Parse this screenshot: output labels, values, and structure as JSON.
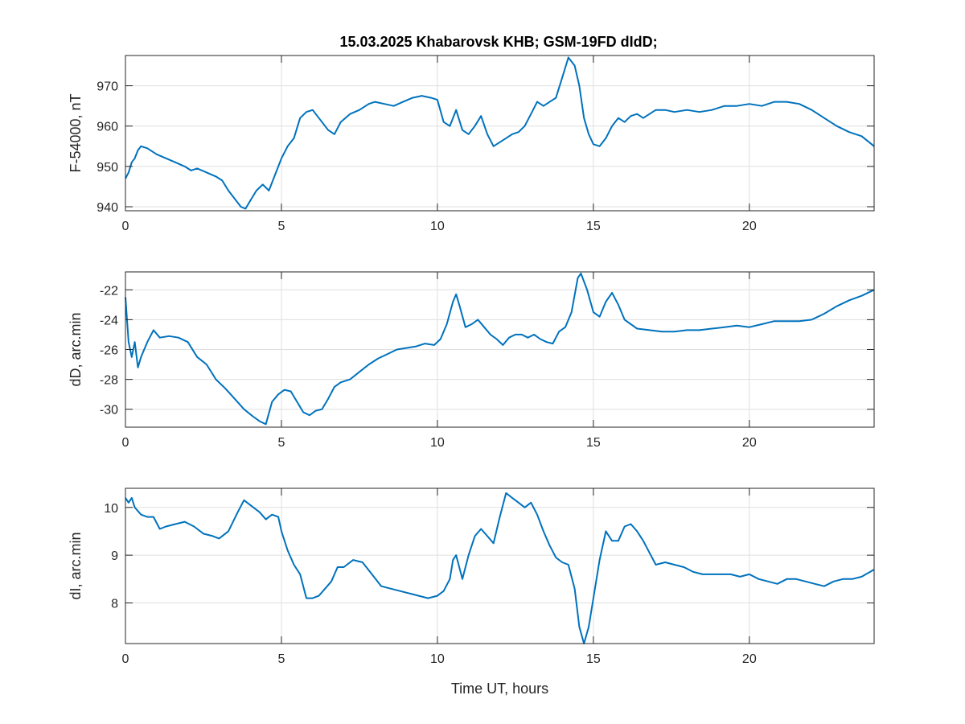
{
  "figure": {
    "title": "15.03.2025  Khabarovsk KHB; GSM-19FD dIdD;"
  },
  "chart_data": [
    {
      "type": "line",
      "xlabel": "",
      "ylabel": "F-54000, nT",
      "xlim": [
        0,
        24
      ],
      "ylim": [
        939,
        977.5
      ],
      "xticks": [
        0,
        5,
        10,
        15,
        20
      ],
      "yticks": [
        940,
        950,
        960,
        970
      ],
      "ytick_labels": [
        "940",
        "950",
        "960",
        "970"
      ],
      "grid": true,
      "color": "#0072bd",
      "series": [
        {
          "x": [
            0,
            0.1,
            0.2,
            0.3,
            0.4,
            0.5,
            0.7,
            1.0,
            1.3,
            1.6,
            1.9,
            2.1,
            2.3,
            2.6,
            2.9,
            3.1,
            3.3,
            3.5,
            3.7,
            3.85,
            4.0,
            4.2,
            4.4,
            4.6,
            4.8,
            5.0,
            5.2,
            5.4,
            5.6,
            5.8,
            6.0,
            6.2,
            6.5,
            6.7,
            6.9,
            7.2,
            7.5,
            7.8,
            8.0,
            8.3,
            8.6,
            8.9,
            9.2,
            9.5,
            9.8,
            10.0,
            10.2,
            10.4,
            10.6,
            10.8,
            11.0,
            11.2,
            11.4,
            11.6,
            11.8,
            12.0,
            12.2,
            12.4,
            12.6,
            12.8,
            13.0,
            13.2,
            13.4,
            13.6,
            13.8,
            14.0,
            14.2,
            14.4,
            14.55,
            14.7,
            14.85,
            15.0,
            15.2,
            15.4,
            15.6,
            15.8,
            16.0,
            16.2,
            16.4,
            16.6,
            16.8,
            17.0,
            17.3,
            17.6,
            18.0,
            18.4,
            18.8,
            19.2,
            19.6,
            20.0,
            20.4,
            20.8,
            21.2,
            21.6,
            22.0,
            22.4,
            22.8,
            23.2,
            23.6,
            24.0
          ],
          "y": [
            947,
            948.5,
            951,
            952,
            954,
            955,
            954.5,
            953,
            952,
            951,
            950,
            949,
            949.5,
            948.5,
            947.5,
            946.5,
            944,
            942,
            940,
            939.5,
            941.5,
            944,
            945.5,
            944,
            948,
            952,
            955,
            957,
            962,
            963.5,
            964,
            962,
            959,
            958,
            961,
            963,
            964,
            965.5,
            966,
            965.5,
            965,
            966,
            967,
            967.5,
            967,
            966.5,
            961,
            960,
            964,
            959,
            958,
            960,
            962.5,
            958,
            955,
            956,
            957,
            958,
            958.5,
            960,
            963,
            966,
            965,
            966,
            967,
            972,
            977,
            975,
            970,
            962,
            958,
            955.5,
            955,
            957,
            960,
            962,
            961,
            962.5,
            963,
            962,
            963,
            964,
            964,
            963.5,
            964,
            963.5,
            964,
            965,
            965,
            965.5,
            965,
            966,
            966,
            965.5,
            964,
            962,
            960,
            958.5,
            957.5,
            955
          ]
        }
      ]
    },
    {
      "type": "line",
      "xlabel": "",
      "ylabel": "dD, arc.min",
      "xlim": [
        0,
        24
      ],
      "ylim": [
        -31.2,
        -20.8
      ],
      "xticks": [
        0,
        5,
        10,
        15,
        20
      ],
      "yticks": [
        -30,
        -28,
        -26,
        -24,
        -22
      ],
      "ytick_labels": [
        "-30",
        "-28",
        "-26",
        "-24",
        "-22"
      ],
      "grid": true,
      "color": "#0072bd",
      "series": [
        {
          "x": [
            0,
            0.1,
            0.2,
            0.3,
            0.4,
            0.5,
            0.7,
            0.9,
            1.1,
            1.4,
            1.7,
            2.0,
            2.3,
            2.6,
            2.9,
            3.2,
            3.5,
            3.8,
            4.1,
            4.3,
            4.5,
            4.7,
            4.9,
            5.1,
            5.3,
            5.5,
            5.7,
            5.9,
            6.1,
            6.3,
            6.5,
            6.7,
            6.9,
            7.2,
            7.5,
            7.8,
            8.1,
            8.4,
            8.7,
            9.0,
            9.3,
            9.6,
            9.9,
            10.1,
            10.3,
            10.5,
            10.6,
            10.7,
            10.9,
            11.1,
            11.3,
            11.5,
            11.7,
            11.9,
            12.1,
            12.3,
            12.5,
            12.7,
            12.9,
            13.1,
            13.3,
            13.5,
            13.7,
            13.9,
            14.1,
            14.3,
            14.5,
            14.6,
            14.8,
            15.0,
            15.2,
            15.4,
            15.6,
            15.8,
            16.0,
            16.4,
            16.8,
            17.2,
            17.6,
            18.0,
            18.4,
            18.8,
            19.2,
            19.6,
            20.0,
            20.4,
            20.8,
            21.2,
            21.6,
            22.0,
            22.4,
            22.8,
            23.2,
            23.6,
            24.0
          ],
          "y": [
            -22.5,
            -25.5,
            -26.5,
            -25.5,
            -27.2,
            -26.5,
            -25.5,
            -24.7,
            -25.2,
            -25.1,
            -25.2,
            -25.5,
            -26.5,
            -27,
            -28,
            -28.6,
            -29.3,
            -30,
            -30.5,
            -30.8,
            -31,
            -29.5,
            -29,
            -28.7,
            -28.8,
            -29.5,
            -30.2,
            -30.4,
            -30.1,
            -30,
            -29.3,
            -28.5,
            -28.2,
            -28,
            -27.5,
            -27,
            -26.6,
            -26.3,
            -26,
            -25.9,
            -25.8,
            -25.6,
            -25.7,
            -25.3,
            -24.3,
            -22.8,
            -22.3,
            -23,
            -24.5,
            -24.3,
            -24,
            -24.5,
            -25,
            -25.3,
            -25.7,
            -25.2,
            -25,
            -25,
            -25.2,
            -25,
            -25.3,
            -25.5,
            -25.6,
            -24.8,
            -24.5,
            -23.5,
            -21.2,
            -20.9,
            -22,
            -23.5,
            -23.8,
            -22.8,
            -22.2,
            -23,
            -24,
            -24.6,
            -24.7,
            -24.8,
            -24.8,
            -24.7,
            -24.7,
            -24.6,
            -24.5,
            -24.4,
            -24.5,
            -24.3,
            -24.1,
            -24.1,
            -24.1,
            -24,
            -23.6,
            -23.1,
            -22.7,
            -22.4,
            -22
          ]
        }
      ]
    },
    {
      "type": "line",
      "xlabel": "Time UT, hours",
      "ylabel": "dI, arc.min",
      "xlim": [
        0,
        24
      ],
      "ylim": [
        7.15,
        10.4
      ],
      "xticks": [
        0,
        5,
        10,
        15,
        20
      ],
      "yticks": [
        8,
        9,
        10
      ],
      "ytick_labels": [
        "8",
        "9",
        "10"
      ],
      "grid": true,
      "color": "#0072bd",
      "series": [
        {
          "x": [
            0,
            0.1,
            0.2,
            0.3,
            0.5,
            0.7,
            0.9,
            1.1,
            1.3,
            1.6,
            1.9,
            2.2,
            2.5,
            2.8,
            3.0,
            3.3,
            3.6,
            3.8,
            4.0,
            4.3,
            4.5,
            4.7,
            4.9,
            5.0,
            5.2,
            5.4,
            5.6,
            5.8,
            6.0,
            6.2,
            6.4,
            6.6,
            6.8,
            7.0,
            7.3,
            7.6,
            7.9,
            8.2,
            8.5,
            8.8,
            9.1,
            9.4,
            9.7,
            10.0,
            10.2,
            10.4,
            10.5,
            10.6,
            10.8,
            11.0,
            11.2,
            11.4,
            11.6,
            11.8,
            12.0,
            12.2,
            12.4,
            12.6,
            12.8,
            13.0,
            13.2,
            13.4,
            13.6,
            13.8,
            14.0,
            14.2,
            14.4,
            14.55,
            14.7,
            14.85,
            15.0,
            15.2,
            15.4,
            15.6,
            15.8,
            16.0,
            16.2,
            16.4,
            16.6,
            16.8,
            17.0,
            17.3,
            17.6,
            17.9,
            18.2,
            18.5,
            18.8,
            19.1,
            19.4,
            19.7,
            20.0,
            20.3,
            20.6,
            20.9,
            21.2,
            21.5,
            21.8,
            22.1,
            22.4,
            22.7,
            23.0,
            23.3,
            23.6,
            24.0
          ],
          "y": [
            10.2,
            10.1,
            10.2,
            10,
            9.85,
            9.8,
            9.8,
            9.55,
            9.6,
            9.65,
            9.7,
            9.6,
            9.45,
            9.4,
            9.35,
            9.5,
            9.9,
            10.15,
            10.05,
            9.9,
            9.75,
            9.85,
            9.8,
            9.5,
            9.1,
            8.8,
            8.6,
            8.1,
            8.1,
            8.15,
            8.3,
            8.45,
            8.75,
            8.75,
            8.9,
            8.85,
            8.6,
            8.35,
            8.3,
            8.25,
            8.2,
            8.15,
            8.1,
            8.15,
            8.25,
            8.5,
            8.9,
            9,
            8.5,
            9,
            9.4,
            9.55,
            9.4,
            9.25,
            9.8,
            10.3,
            10.2,
            10.1,
            10,
            10.1,
            9.85,
            9.5,
            9.2,
            8.95,
            8.85,
            8.8,
            8.3,
            7.5,
            7.15,
            7.5,
            8.1,
            8.9,
            9.5,
            9.3,
            9.3,
            9.6,
            9.65,
            9.5,
            9.3,
            9.05,
            8.8,
            8.85,
            8.8,
            8.75,
            8.65,
            8.6,
            8.6,
            8.6,
            8.6,
            8.55,
            8.6,
            8.5,
            8.45,
            8.4,
            8.5,
            8.5,
            8.45,
            8.4,
            8.35,
            8.45,
            8.5,
            8.5,
            8.55,
            8.7
          ]
        }
      ]
    }
  ]
}
